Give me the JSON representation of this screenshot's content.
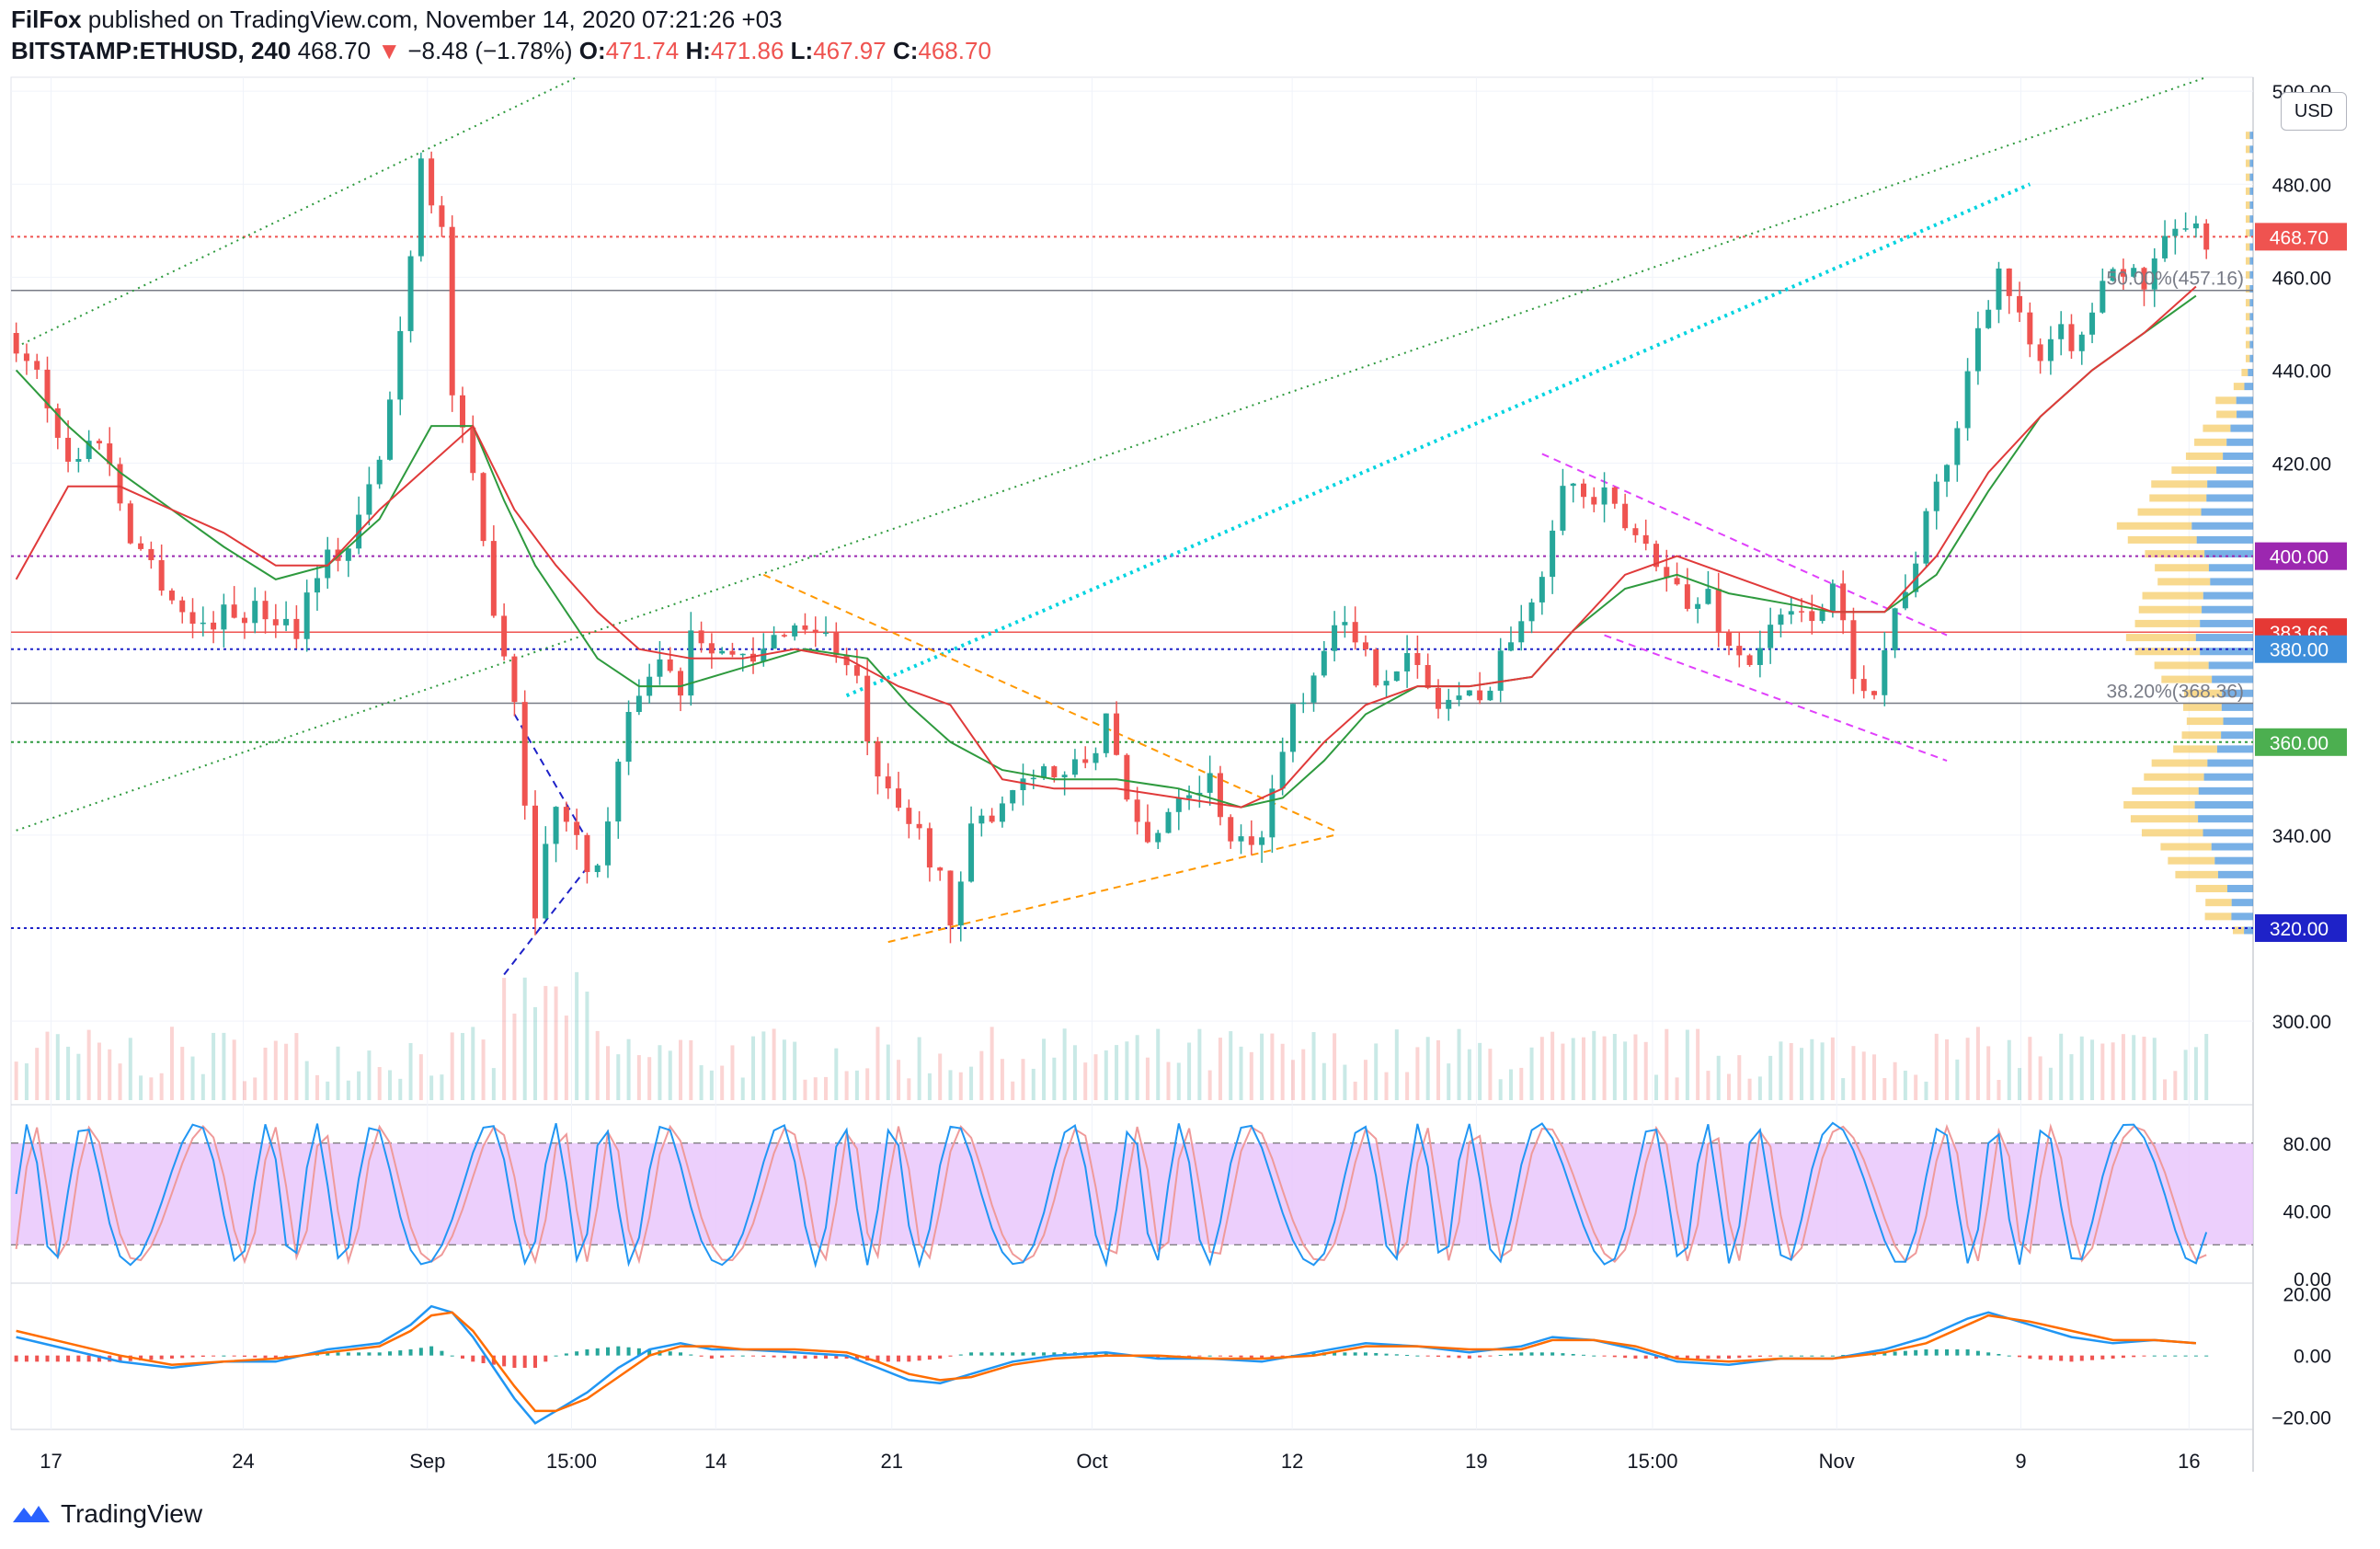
{
  "header": {
    "publisher": "FilFox",
    "published_text": "published on TradingView.com, November 14, 2020 07:21:26 +03",
    "symbol": "BITSTAMP:ETHUSD, 240",
    "last": "468.70",
    "change": "−8.48 (−1.78%)",
    "o_label": "O:",
    "o": "471.74",
    "h_label": "H:",
    "h": "471.86",
    "l_label": "L:",
    "l": "467.97",
    "c_label": "C:",
    "c": "468.70"
  },
  "currency_button": "USD",
  "footer": {
    "brand": "TradingView"
  },
  "colors": {
    "up": "#26a69a",
    "down": "#ef5350",
    "sma_red": "#e03a3a",
    "sma_green": "#2e9a3e",
    "purple_level": "#9c27b0",
    "blue_level": "#1e22c8",
    "cyan_trend": "#00d4e0",
    "stoch_band": "#e7c3fb",
    "macd_blue": "#2196f3",
    "macd_orange": "#ff6d00"
  },
  "chart_data": {
    "type": "candlestick",
    "price_axis": {
      "min": 283,
      "max": 503,
      "ticks": [
        "500.00",
        "480.00",
        "460.00",
        "440.00",
        "420.00",
        "400.00",
        "380.00",
        "360.00",
        "340.00",
        "320.00",
        "300.00"
      ]
    },
    "x_tick_labels": [
      "17",
      "24",
      "Sep",
      "15:00",
      "14",
      "21",
      "Oct",
      "12",
      "19",
      "15:00",
      "Nov",
      "9",
      "16"
    ],
    "price_path": [
      [
        0,
        448
      ],
      [
        3,
        440
      ],
      [
        6,
        420
      ],
      [
        9,
        426
      ],
      [
        12,
        405
      ],
      [
        15,
        395
      ],
      [
        18,
        385
      ],
      [
        22,
        388
      ],
      [
        25,
        388
      ],
      [
        28,
        385
      ],
      [
        30,
        398
      ],
      [
        33,
        402
      ],
      [
        36,
        420
      ],
      [
        38,
        448
      ],
      [
        40,
        486
      ],
      [
        42,
        470
      ],
      [
        43,
        435
      ],
      [
        45,
        415
      ],
      [
        47,
        390
      ],
      [
        49,
        370
      ],
      [
        51,
        325
      ],
      [
        53,
        348
      ],
      [
        55,
        338
      ],
      [
        57,
        332
      ],
      [
        59,
        355
      ],
      [
        61,
        372
      ],
      [
        63,
        378
      ],
      [
        65,
        372
      ],
      [
        66,
        385
      ],
      [
        68,
        382
      ],
      [
        70,
        378
      ],
      [
        72,
        376
      ],
      [
        75,
        385
      ],
      [
        78,
        385
      ],
      [
        80,
        380
      ],
      [
        82,
        372
      ],
      [
        84,
        350
      ],
      [
        86,
        345
      ],
      [
        88,
        340
      ],
      [
        90,
        332
      ],
      [
        91,
        318
      ],
      [
        93,
        340
      ],
      [
        96,
        348
      ],
      [
        99,
        355
      ],
      [
        102,
        352
      ],
      [
        105,
        358
      ],
      [
        106,
        368
      ],
      [
        108,
        345
      ],
      [
        110,
        338
      ],
      [
        113,
        350
      ],
      [
        116,
        352
      ],
      [
        118,
        340
      ],
      [
        120,
        336
      ],
      [
        122,
        349
      ],
      [
        124,
        368
      ],
      [
        126,
        375
      ],
      [
        128,
        388
      ],
      [
        130,
        380
      ],
      [
        132,
        375
      ],
      [
        135,
        378
      ],
      [
        138,
        368
      ],
      [
        140,
        370
      ],
      [
        142,
        368
      ],
      [
        144,
        380
      ],
      [
        146,
        384
      ],
      [
        148,
        398
      ],
      [
        150,
        418
      ],
      [
        152,
        412
      ],
      [
        154,
        412
      ],
      [
        156,
        406
      ],
      [
        158,
        402
      ],
      [
        160,
        398
      ],
      [
        162,
        388
      ],
      [
        164,
        392
      ],
      [
        166,
        380
      ],
      [
        168,
        378
      ],
      [
        171,
        386
      ],
      [
        174,
        388
      ],
      [
        176,
        392
      ],
      [
        178,
        376
      ],
      [
        180,
        372
      ],
      [
        182,
        388
      ],
      [
        184,
        400
      ],
      [
        186,
        414
      ],
      [
        188,
        428
      ],
      [
        190,
        450
      ],
      [
        192,
        462
      ],
      [
        194,
        450
      ],
      [
        196,
        440
      ],
      [
        198,
        448
      ],
      [
        200,
        445
      ],
      [
        202,
        462
      ],
      [
        204,
        462
      ],
      [
        206,
        458
      ],
      [
        208,
        466
      ],
      [
        210,
        472
      ],
      [
        211,
        468.7
      ]
    ],
    "series": [
      {
        "name": "SMA",
        "type": "line",
        "values": [
          [
            0,
            440
          ],
          [
            5,
            428
          ],
          [
            10,
            418
          ],
          [
            15,
            410
          ],
          [
            20,
            402
          ],
          [
            25,
            395
          ],
          [
            30,
            398
          ],
          [
            35,
            408
          ],
          [
            40,
            428
          ],
          [
            44,
            428
          ],
          [
            47,
            412
          ],
          [
            50,
            398
          ],
          [
            53,
            388
          ],
          [
            56,
            378
          ],
          [
            60,
            372
          ],
          [
            64,
            372
          ],
          [
            70,
            376
          ],
          [
            76,
            380
          ],
          [
            82,
            378
          ],
          [
            86,
            368
          ],
          [
            90,
            360
          ],
          [
            95,
            354
          ],
          [
            100,
            352
          ],
          [
            106,
            352
          ],
          [
            112,
            350
          ],
          [
            118,
            346
          ],
          [
            122,
            348
          ],
          [
            126,
            356
          ],
          [
            130,
            366
          ],
          [
            135,
            372
          ],
          [
            140,
            372
          ],
          [
            146,
            374
          ],
          [
            150,
            384
          ],
          [
            155,
            393
          ],
          [
            160,
            396
          ],
          [
            165,
            392
          ],
          [
            170,
            390
          ],
          [
            175,
            388
          ],
          [
            180,
            388
          ],
          [
            185,
            396
          ],
          [
            190,
            414
          ],
          [
            195,
            430
          ],
          [
            200,
            440
          ],
          [
            205,
            448
          ],
          [
            210,
            456
          ]
        ]
      },
      {
        "name": "SMA",
        "type": "line",
        "values": [
          [
            0,
            395
          ],
          [
            5,
            415
          ],
          [
            10,
            415
          ],
          [
            15,
            410
          ],
          [
            20,
            405
          ],
          [
            25,
            398
          ],
          [
            30,
            398
          ],
          [
            35,
            410
          ],
          [
            40,
            420
          ],
          [
            44,
            428
          ],
          [
            48,
            410
          ],
          [
            52,
            398
          ],
          [
            56,
            388
          ],
          [
            60,
            380
          ],
          [
            65,
            378
          ],
          [
            70,
            378
          ],
          [
            75,
            380
          ],
          [
            80,
            378
          ],
          [
            85,
            372
          ],
          [
            90,
            368
          ],
          [
            95,
            352
          ],
          [
            100,
            350
          ],
          [
            106,
            350
          ],
          [
            112,
            348
          ],
          [
            118,
            346
          ],
          [
            122,
            350
          ],
          [
            126,
            360
          ],
          [
            130,
            368
          ],
          [
            135,
            372
          ],
          [
            140,
            372
          ],
          [
            146,
            374
          ],
          [
            150,
            384
          ],
          [
            155,
            396
          ],
          [
            160,
            400
          ],
          [
            165,
            396
          ],
          [
            170,
            392
          ],
          [
            175,
            388
          ],
          [
            180,
            388
          ],
          [
            185,
            400
          ],
          [
            190,
            418
          ],
          [
            195,
            430
          ],
          [
            200,
            440
          ],
          [
            205,
            448
          ],
          [
            210,
            458
          ]
        ]
      }
    ],
    "price_labels": [
      {
        "text": "468.70",
        "value": 468.7,
        "bg": "#ef5350"
      },
      {
        "text": "400.00",
        "value": 400,
        "bg": "#9c27b0"
      },
      {
        "text": "383.66",
        "value": 383.66,
        "bg": "#e53935"
      },
      {
        "text": "380.00",
        "value": 380,
        "bg": "#3f8fdb"
      },
      {
        "text": "360.00",
        "value": 360,
        "bg": "#4caf50"
      },
      {
        "text": "320.00",
        "value": 320,
        "bg": "#1e22c8"
      }
    ],
    "horizontal_levels": [
      {
        "value": 468.7,
        "color": "#ef5350",
        "style": "dotted"
      },
      {
        "value": 457.16,
        "color": "#787b86",
        "style": "solid"
      },
      {
        "value": 400,
        "color": "#9c27b0",
        "style": "dotted"
      },
      {
        "value": 383.66,
        "color": "#ef5350",
        "style": "solid"
      },
      {
        "value": 380,
        "color": "#1e22c8",
        "style": "dotted"
      },
      {
        "value": 368.36,
        "color": "#787b86",
        "style": "solid"
      },
      {
        "value": 360,
        "color": "#2e9a3e",
        "style": "dotted"
      },
      {
        "value": 320,
        "color": "#1e22c8",
        "style": "dotted"
      }
    ],
    "fib_labels": [
      {
        "text": "50.00%(457.16)",
        "value": 457.16
      },
      {
        "text": "38.20%(368.36)",
        "value": 368.36
      }
    ],
    "trendlines": [
      {
        "color": "#2e9a3e",
        "style": "dotted",
        "from": [
          0,
          445
        ],
        "to": [
          54,
          503
        ]
      },
      {
        "color": "#2e9a3e",
        "style": "dotted",
        "from": [
          0,
          341
        ],
        "to": [
          211,
          503
        ]
      },
      {
        "color": "#00d4e0",
        "style": "dotted-thick",
        "from": [
          80,
          370
        ],
        "to": [
          194,
          480
        ]
      },
      {
        "color": "#ff9800",
        "style": "dashed",
        "from": [
          72,
          396
        ],
        "to": [
          127,
          341
        ]
      },
      {
        "color": "#ff9800",
        "style": "dashed",
        "from": [
          84,
          317
        ],
        "to": [
          127,
          340
        ]
      },
      {
        "color": "#e040fb",
        "style": "dashed",
        "from": [
          147,
          422
        ],
        "to": [
          186,
          383
        ]
      },
      {
        "color": "#e040fb",
        "style": "dashed",
        "from": [
          153,
          383
        ],
        "to": [
          186,
          356
        ]
      },
      {
        "color": "#1e22c8",
        "style": "dashed",
        "from": [
          48,
          366
        ],
        "to": [
          55,
          339
        ]
      },
      {
        "color": "#1e22c8",
        "style": "dashed",
        "from": [
          47,
          310
        ],
        "to": [
          55,
          333
        ]
      }
    ],
    "stoch": {
      "ticks": [
        "80.00",
        "40.00",
        "0.00"
      ],
      "band": [
        20,
        80
      ],
      "range": [
        0,
        100
      ]
    },
    "macd": {
      "ticks": [
        "20.00",
        "0.00",
        "−20.00"
      ],
      "range": [
        -24,
        22
      ],
      "macd_line": [
        [
          0,
          6
        ],
        [
          5,
          2
        ],
        [
          10,
          -2
        ],
        [
          15,
          -4
        ],
        [
          20,
          -2
        ],
        [
          25,
          -2
        ],
        [
          30,
          2
        ],
        [
          35,
          4
        ],
        [
          38,
          10
        ],
        [
          40,
          16
        ],
        [
          42,
          14
        ],
        [
          44,
          6
        ],
        [
          46,
          -4
        ],
        [
          48,
          -14
        ],
        [
          50,
          -22
        ],
        [
          52,
          -18
        ],
        [
          55,
          -12
        ],
        [
          58,
          -4
        ],
        [
          61,
          2
        ],
        [
          64,
          4
        ],
        [
          67,
          2
        ],
        [
          70,
          2
        ],
        [
          75,
          1
        ],
        [
          80,
          0
        ],
        [
          83,
          -4
        ],
        [
          86,
          -8
        ],
        [
          89,
          -9
        ],
        [
          92,
          -6
        ],
        [
          96,
          -2
        ],
        [
          100,
          0
        ],
        [
          105,
          1
        ],
        [
          110,
          -1
        ],
        [
          115,
          -1
        ],
        [
          120,
          -2
        ],
        [
          125,
          1
        ],
        [
          130,
          4
        ],
        [
          135,
          3
        ],
        [
          140,
          1
        ],
        [
          145,
          3
        ],
        [
          148,
          6
        ],
        [
          152,
          5
        ],
        [
          156,
          2
        ],
        [
          160,
          -2
        ],
        [
          165,
          -3
        ],
        [
          170,
          -1
        ],
        [
          175,
          -1
        ],
        [
          180,
          2
        ],
        [
          184,
          6
        ],
        [
          188,
          12
        ],
        [
          190,
          14
        ],
        [
          194,
          10
        ],
        [
          198,
          6
        ],
        [
          202,
          4
        ],
        [
          206,
          5
        ],
        [
          210,
          4
        ]
      ],
      "signal_line": [
        [
          0,
          8
        ],
        [
          5,
          4
        ],
        [
          10,
          0
        ],
        [
          15,
          -3
        ],
        [
          20,
          -2
        ],
        [
          25,
          -1
        ],
        [
          30,
          1
        ],
        [
          35,
          3
        ],
        [
          38,
          8
        ],
        [
          40,
          13
        ],
        [
          42,
          14
        ],
        [
          44,
          8
        ],
        [
          46,
          -1
        ],
        [
          48,
          -10
        ],
        [
          50,
          -18
        ],
        [
          52,
          -18
        ],
        [
          55,
          -14
        ],
        [
          58,
          -7
        ],
        [
          61,
          0
        ],
        [
          64,
          3
        ],
        [
          67,
          3
        ],
        [
          70,
          2
        ],
        [
          75,
          2
        ],
        [
          80,
          1
        ],
        [
          83,
          -2
        ],
        [
          86,
          -6
        ],
        [
          89,
          -8
        ],
        [
          92,
          -7
        ],
        [
          96,
          -3
        ],
        [
          100,
          -1
        ],
        [
          105,
          0
        ],
        [
          110,
          0
        ],
        [
          115,
          -1
        ],
        [
          120,
          -1
        ],
        [
          125,
          0
        ],
        [
          130,
          3
        ],
        [
          135,
          3
        ],
        [
          140,
          2
        ],
        [
          145,
          2
        ],
        [
          148,
          5
        ],
        [
          152,
          5
        ],
        [
          156,
          3
        ],
        [
          160,
          -1
        ],
        [
          165,
          -2
        ],
        [
          170,
          -1
        ],
        [
          175,
          -1
        ],
        [
          180,
          1
        ],
        [
          184,
          4
        ],
        [
          188,
          10
        ],
        [
          190,
          13
        ],
        [
          194,
          11
        ],
        [
          198,
          8
        ],
        [
          202,
          5
        ],
        [
          206,
          5
        ],
        [
          210,
          4
        ]
      ]
    }
  }
}
